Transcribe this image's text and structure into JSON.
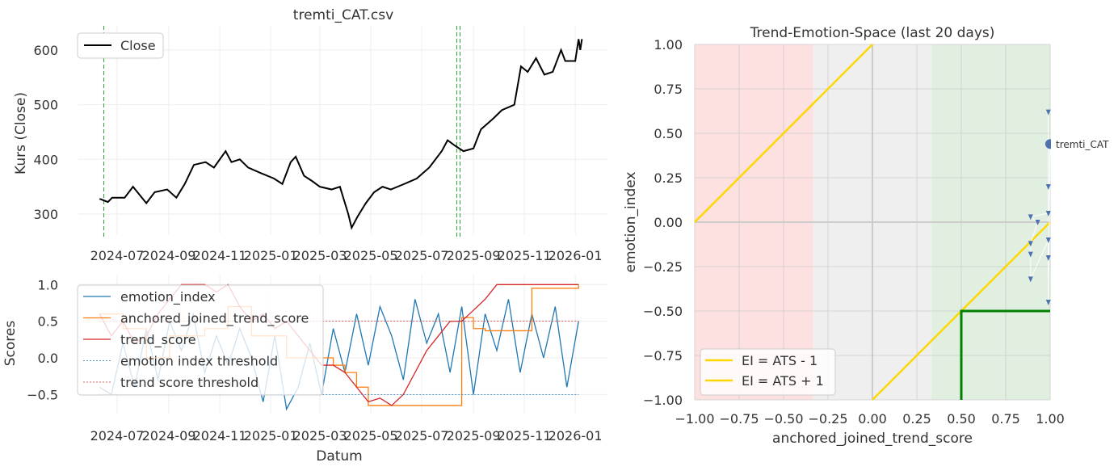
{
  "chart_data": [
    {
      "type": "line",
      "title": "tremti_CAT.csv",
      "xlabel": "",
      "ylabel": "Kurs (Close)",
      "x_ticks": [
        "2024-07",
        "2024-09",
        "2024-11",
        "2025-01",
        "2025-03",
        "2025-05",
        "2025-07",
        "2025-09",
        "2025-11",
        "2026-01"
      ],
      "y_ticks": [
        300,
        400,
        500,
        600
      ],
      "ylim": [
        255,
        645
      ],
      "legend": "top-left",
      "legend_entries": [
        "Close"
      ],
      "vlines": [
        "2024-06-15",
        "2025-08-12",
        "2025-08-16"
      ],
      "series": [
        {
          "name": "Close",
          "color": "#000000",
          "points": [
            [
              "2024-06-10",
              328
            ],
            [
              "2024-06-20",
              322
            ],
            [
              "2024-06-25",
              330
            ],
            [
              "2024-07-10",
              330
            ],
            [
              "2024-07-20",
              350
            ],
            [
              "2024-08-05",
              320
            ],
            [
              "2024-08-15",
              340
            ],
            [
              "2024-08-30",
              345
            ],
            [
              "2024-09-10",
              330
            ],
            [
              "2024-09-20",
              355
            ],
            [
              "2024-10-01",
              390
            ],
            [
              "2024-10-15",
              395
            ],
            [
              "2024-10-25",
              385
            ],
            [
              "2024-11-08",
              415
            ],
            [
              "2024-11-15",
              395
            ],
            [
              "2024-11-25",
              400
            ],
            [
              "2024-12-05",
              385
            ],
            [
              "2024-12-20",
              375
            ],
            [
              "2025-01-05",
              365
            ],
            [
              "2025-01-15",
              355
            ],
            [
              "2025-01-25",
              395
            ],
            [
              "2025-01-31",
              405
            ],
            [
              "2025-02-10",
              370
            ],
            [
              "2025-02-20",
              360
            ],
            [
              "2025-03-01",
              350
            ],
            [
              "2025-03-15",
              345
            ],
            [
              "2025-03-25",
              350
            ],
            [
              "2025-04-04",
              300
            ],
            [
              "2025-04-08",
              275
            ],
            [
              "2025-04-15",
              295
            ],
            [
              "2025-04-25",
              320
            ],
            [
              "2025-05-05",
              340
            ],
            [
              "2025-05-15",
              350
            ],
            [
              "2025-05-25",
              345
            ],
            [
              "2025-06-10",
              355
            ],
            [
              "2025-06-25",
              365
            ],
            [
              "2025-07-10",
              385
            ],
            [
              "2025-07-25",
              415
            ],
            [
              "2025-08-01",
              435
            ],
            [
              "2025-08-10",
              425
            ],
            [
              "2025-08-20",
              415
            ],
            [
              "2025-09-01",
              420
            ],
            [
              "2025-09-10",
              455
            ],
            [
              "2025-09-25",
              475
            ],
            [
              "2025-10-05",
              490
            ],
            [
              "2025-10-20",
              500
            ],
            [
              "2025-10-28",
              570
            ],
            [
              "2025-11-05",
              560
            ],
            [
              "2025-11-15",
              585
            ],
            [
              "2025-11-25",
              555
            ],
            [
              "2025-12-05",
              560
            ],
            [
              "2025-12-15",
              600
            ],
            [
              "2025-12-20",
              580
            ],
            [
              "2026-01-01",
              580
            ],
            [
              "2026-01-05",
              620
            ],
            [
              "2026-01-07",
              600
            ],
            [
              "2026-01-09",
              620
            ]
          ]
        }
      ]
    },
    {
      "type": "line",
      "title": "",
      "xlabel": "Datum",
      "ylabel": "Scores",
      "x_ticks": [
        "2024-07",
        "2024-09",
        "2024-11",
        "2025-01",
        "2025-03",
        "2025-05",
        "2025-07",
        "2025-09",
        "2025-11",
        "2026-01"
      ],
      "y_ticks": [
        1.0,
        0.5,
        0.0,
        -0.5
      ],
      "y_tick_labels": [
        "1.0",
        "0.5",
        "0.0",
        "−0.5"
      ],
      "ylim": [
        -0.85,
        1.13
      ],
      "legend": "top-left",
      "x": [
        "2024-06-10",
        "2024-06-24",
        "2024-07-08",
        "2024-07-22",
        "2024-08-05",
        "2024-08-19",
        "2024-09-02",
        "2024-09-16",
        "2024-09-30",
        "2024-10-14",
        "2024-10-28",
        "2024-11-11",
        "2024-11-25",
        "2024-12-09",
        "2024-12-23",
        "2025-01-06",
        "2025-01-20",
        "2025-02-03",
        "2025-02-17",
        "2025-03-03",
        "2025-03-17",
        "2025-03-31",
        "2025-04-14",
        "2025-04-28",
        "2025-05-12",
        "2025-05-26",
        "2025-06-09",
        "2025-06-23",
        "2025-07-07",
        "2025-07-21",
        "2025-08-04",
        "2025-08-18",
        "2025-09-01",
        "2025-09-15",
        "2025-09-29",
        "2025-10-13",
        "2025-10-27",
        "2025-11-10",
        "2025-11-24",
        "2025-12-08",
        "2025-12-22",
        "2026-01-05"
      ],
      "series": [
        {
          "name": "emotion_index",
          "color": "#1f77b4",
          "values": [
            -0.4,
            -0.5,
            0.2,
            -0.4,
            0.4,
            -0.3,
            0.5,
            0.1,
            0.6,
            -0.2,
            0.3,
            -0.1,
            0.4,
            0.0,
            -0.6,
            0.3,
            -0.7,
            -0.4,
            0.2,
            -0.5,
            0.4,
            -0.2,
            0.6,
            -0.1,
            0.7,
            0.3,
            -0.3,
            0.8,
            0.2,
            0.6,
            -0.2,
            0.7,
            -0.5,
            0.6,
            0.1,
            0.8,
            -0.2,
            0.6,
            0.0,
            0.7,
            -0.4,
            0.5
          ]
        },
        {
          "name": "anchored_joined_trend_score",
          "color": "#ff7f0e",
          "step": true,
          "values": [
            0.6,
            0.6,
            0.4,
            0.4,
            0.0,
            0.0,
            0.3,
            0.3,
            0.3,
            0.4,
            0.4,
            0.7,
            0.7,
            0.3,
            0.3,
            0.3,
            0.0,
            0.0,
            0.0,
            0.0,
            -0.1,
            -0.2,
            -0.4,
            -0.65,
            -0.65,
            -0.65,
            -0.65,
            -0.65,
            -0.65,
            -0.65,
            -0.65,
            0.55,
            0.4,
            0.37,
            0.37,
            0.37,
            0.37,
            0.95,
            0.95,
            0.95,
            0.95,
            1.0
          ]
        },
        {
          "name": "trend_score",
          "color": "#d62728",
          "values": [
            0.6,
            0.3,
            0.5,
            0.2,
            0.3,
            0.6,
            0.8,
            1.0,
            1.0,
            1.0,
            0.9,
            1.0,
            0.7,
            0.5,
            0.6,
            0.4,
            0.5,
            0.3,
            0.1,
            -0.1,
            -0.1,
            -0.2,
            -0.4,
            -0.6,
            -0.55,
            -0.65,
            -0.5,
            -0.2,
            0.1,
            0.3,
            0.5,
            0.5,
            0.65,
            0.8,
            1.0,
            1.0,
            1.0,
            1.0,
            1.0,
            1.0,
            1.0,
            1.0
          ]
        },
        {
          "name": "emotion index threshold",
          "color": "#1f77b4",
          "dashed": true,
          "constant": -0.5
        },
        {
          "name": "trend score threshold",
          "color": "#d62728",
          "dashed": true,
          "constant": 0.5
        }
      ]
    },
    {
      "type": "scatter",
      "title": "Trend-Emotion-Space (last 20 days)",
      "xlabel": "anchored_joined_trend_score",
      "ylabel": "emotion_index",
      "xlim": [
        -1,
        1
      ],
      "ylim": [
        -1,
        1
      ],
      "ticks": [
        -1,
        -0.75,
        -0.5,
        -0.25,
        0,
        0.25,
        0.5,
        0.75,
        1
      ],
      "tick_labels": [
        "−1.00",
        "−0.75",
        "−0.50",
        "−0.25",
        "0.00",
        "0.25",
        "0.50",
        "0.75",
        "1.00"
      ],
      "regions": [
        {
          "from": -1,
          "to": -0.333,
          "color": "#fde0e0"
        },
        {
          "from": -0.333,
          "to": 0.333,
          "color": "#efefef"
        },
        {
          "from": 0.333,
          "to": 1,
          "color": "#e0efe0"
        }
      ],
      "legend": "bottom-left",
      "lines": [
        {
          "name": "EI = ATS - 1",
          "color": "#ffd700"
        },
        {
          "name": "EI = ATS + 1",
          "color": "#ffd700"
        }
      ],
      "box": {
        "ats": 0.5,
        "ei": -0.5,
        "color": "#008000"
      },
      "trail": [
        [
          0.99,
          0.62
        ],
        [
          0.99,
          0.2
        ],
        [
          0.99,
          0.05
        ],
        [
          0.89,
          0.03
        ],
        [
          0.93,
          0.0
        ],
        [
          0.89,
          -0.12
        ],
        [
          0.89,
          -0.18
        ],
        [
          0.89,
          -0.32
        ],
        [
          0.99,
          -0.1
        ],
        [
          0.99,
          -0.2
        ],
        [
          0.99,
          -0.45
        ]
      ],
      "point": {
        "label": "tremti_CAT",
        "ats": 1.0,
        "ei": 0.44,
        "color": "#4c72b0"
      }
    }
  ]
}
